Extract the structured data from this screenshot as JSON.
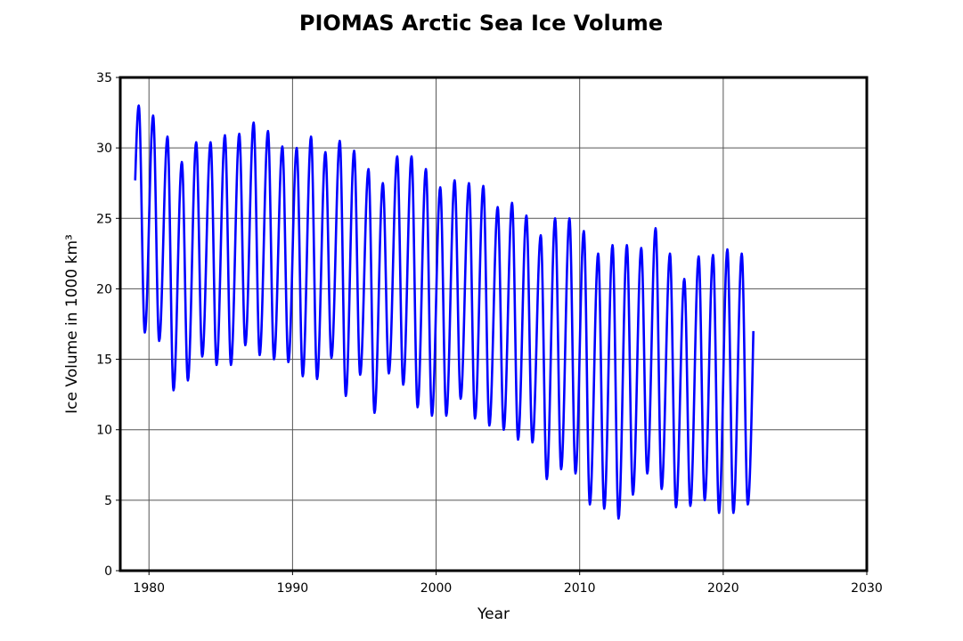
{
  "chart_data": {
    "type": "line",
    "title": "PIOMAS Arctic Sea Ice Volume",
    "xlabel": "Year",
    "ylabel": "Ice Volume in 1000 km³",
    "xlim": [
      1978,
      2030
    ],
    "ylim": [
      0,
      35
    ],
    "xticks": [
      1980,
      1990,
      2000,
      2010,
      2020,
      2030
    ],
    "yticks": [
      0,
      5,
      10,
      15,
      20,
      25,
      30,
      35
    ],
    "grid": true,
    "line_color": "#0000ff",
    "series": [
      {
        "start": [
          1979.04,
          27.7
        ],
        "end": [
          2022.1,
          17.0
        ],
        "years": [
          1979,
          1980,
          1981,
          1982,
          1983,
          1984,
          1985,
          1986,
          1987,
          1988,
          1989,
          1990,
          1991,
          1992,
          1993,
          1994,
          1995,
          1996,
          1997,
          1998,
          1999,
          2000,
          2001,
          2002,
          2003,
          2004,
          2005,
          2006,
          2007,
          2008,
          2009,
          2010,
          2011,
          2012,
          2013,
          2014,
          2015,
          2016,
          2017,
          2018,
          2019,
          2020,
          2021
        ],
        "annual_max": [
          33.0,
          32.3,
          30.8,
          29.0,
          30.4,
          30.4,
          30.9,
          31.0,
          31.8,
          31.2,
          30.1,
          30.0,
          30.8,
          29.7,
          30.5,
          29.8,
          28.5,
          27.5,
          29.4,
          29.4,
          28.5,
          27.2,
          27.7,
          27.5,
          27.3,
          25.8,
          26.1,
          25.2,
          23.8,
          25.0,
          25.0,
          24.1,
          22.5,
          23.1,
          23.1,
          22.9,
          24.3,
          22.5,
          20.7,
          22.3,
          22.4,
          22.8,
          22.5
        ],
        "annual_min": [
          16.9,
          16.3,
          12.8,
          13.5,
          15.2,
          14.6,
          14.6,
          16.0,
          15.3,
          15.0,
          14.8,
          13.8,
          13.6,
          15.1,
          12.4,
          13.9,
          11.2,
          14.0,
          13.2,
          11.6,
          11.0,
          11.0,
          12.2,
          10.8,
          10.3,
          10.0,
          9.3,
          9.1,
          6.5,
          7.2,
          6.9,
          4.7,
          4.4,
          3.7,
          5.4,
          6.9,
          5.8,
          4.5,
          4.6,
          5.0,
          4.1,
          4.1,
          4.7
        ]
      }
    ]
  }
}
